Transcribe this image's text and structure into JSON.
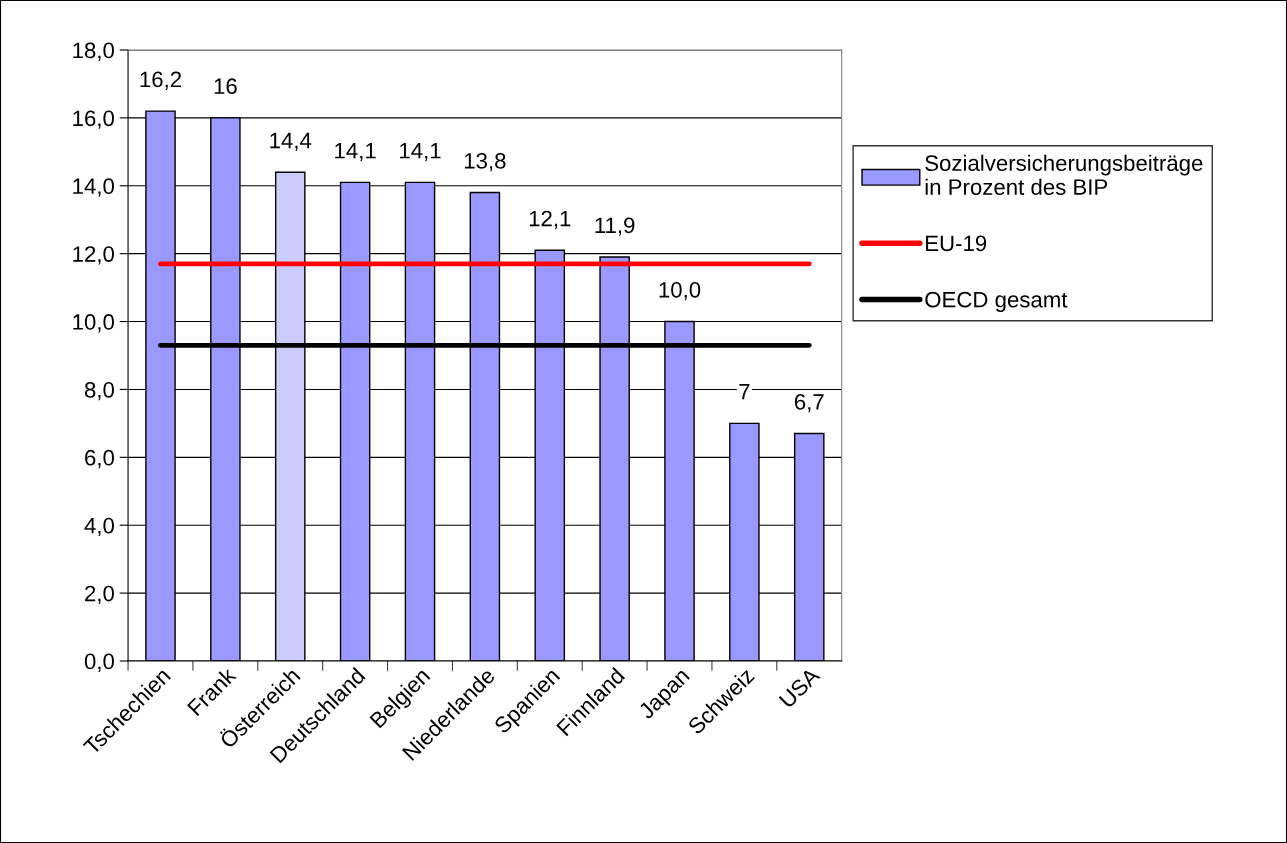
{
  "chart_data": {
    "type": "bar",
    "categories": [
      "Tschechien",
      "Frank",
      "Österreich",
      "Deutschland",
      "Belgien",
      "Niederlande",
      "Spanien",
      "Finnland",
      "Japan",
      "Schweiz",
      "USA"
    ],
    "series": [
      {
        "name": "Sozialversicherungsbeiträge\nin Prozent des BIP",
        "color": "#9999ff",
        "colors": [
          "#9999ff",
          "#9999ff",
          "#ccccff",
          "#9999ff",
          "#9999ff",
          "#9999ff",
          "#9999ff",
          "#9999ff",
          "#9999ff",
          "#9999ff",
          "#9999ff"
        ],
        "values": [
          16.2,
          16,
          14.4,
          14.1,
          14.1,
          13.8,
          12.1,
          11.9,
          10.0,
          7,
          6.7
        ],
        "value_labels": [
          "16,2",
          "16",
          "14,4",
          "14,1",
          "14,1",
          "13,8",
          "12,1",
          "11,9",
          "10,0",
          "7",
          "6,7"
        ]
      },
      {
        "name": "EU-19",
        "type": "line",
        "color": "#ff0000",
        "values": [
          11.7,
          11.7,
          11.7,
          11.7,
          11.7,
          11.7,
          11.7,
          11.7,
          11.7,
          11.7,
          11.7
        ]
      },
      {
        "name": "OECD gesamt",
        "type": "line",
        "color": "#000000",
        "values": [
          9.3,
          9.3,
          9.3,
          9.3,
          9.3,
          9.3,
          9.3,
          9.3,
          9.3,
          9.3,
          9.3
        ]
      }
    ],
    "ylim": [
      0,
      18
    ],
    "yticks": [
      {
        "value": 0,
        "label": "0,0"
      },
      {
        "value": 2,
        "label": "2,0"
      },
      {
        "value": 4,
        "label": "4,0"
      },
      {
        "value": 6,
        "label": "6,0"
      },
      {
        "value": 8,
        "label": "8,0"
      },
      {
        "value": 10,
        "label": "10,0"
      },
      {
        "value": 12,
        "label": "12,0"
      },
      {
        "value": 14,
        "label": "14,0"
      },
      {
        "value": 16,
        "label": "16,0"
      },
      {
        "value": 18,
        "label": "18,0"
      }
    ],
    "grid": "y",
    "legend": "right",
    "marker": "none"
  }
}
